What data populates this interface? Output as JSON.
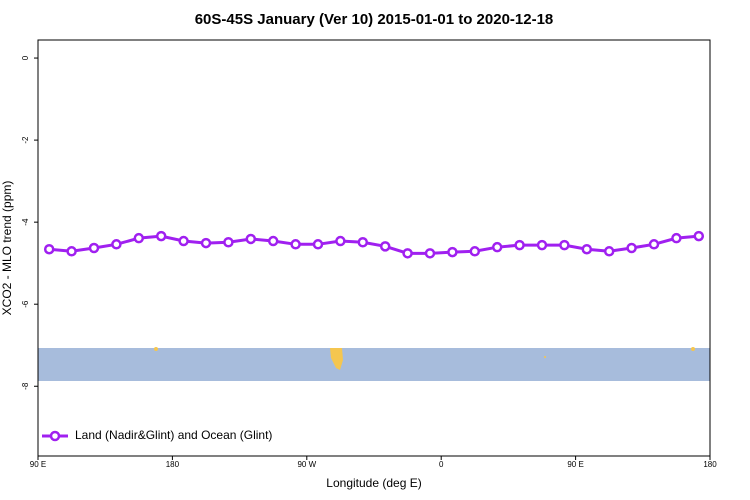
{
  "chart_data": {
    "type": "line",
    "title": "60S-45S January (Ver 10)   2015-01-01 to 2020-12-18",
    "x_label": "Longitude (deg E)",
    "y_label": "XCO2 - MLO trend (ppm)",
    "x": [
      97.5,
      112.5,
      127.5,
      142.5,
      157.5,
      172.5,
      187.5,
      202.5,
      217.5,
      232.5,
      247.5,
      262.5,
      277.5,
      292.5,
      307.5,
      322.5,
      337.5,
      352.5,
      367.5,
      382.5,
      397.5,
      412.5,
      427.5,
      442.5,
      457.5,
      472.5,
      487.5,
      502.5,
      517.5,
      532.5
    ],
    "series": [
      {
        "name": "Land (Nadir&Glint) and Ocean (Glint)",
        "color": "#a020f0",
        "values": [
          -4.66,
          -4.71,
          -4.63,
          -4.54,
          -4.39,
          -4.34,
          -4.46,
          -4.51,
          -4.49,
          -4.41,
          -4.46,
          -4.54,
          -4.54,
          -4.46,
          -4.49,
          -4.59,
          -4.76,
          -4.76,
          -4.73,
          -4.71,
          -4.61,
          -4.56,
          -4.56,
          -4.56,
          -4.66,
          -4.71,
          -4.63,
          -4.54,
          -4.39,
          -4.34
        ]
      }
    ],
    "xlim": [
      90,
      540
    ],
    "xticks": [
      {
        "value": 90,
        "label": "90 E"
      },
      180,
      {
        "value": 270,
        "label": "90 W"
      },
      {
        "value": 360,
        "label": "0"
      },
      {
        "value": 450,
        "label": "90 E"
      },
      {
        "value": 540,
        "label": "180"
      }
    ],
    "ylim": [
      -9.7,
      0.44
    ],
    "yticks": [
      0,
      -2,
      -4,
      -6,
      -8
    ],
    "legend": "bottom-left"
  }
}
